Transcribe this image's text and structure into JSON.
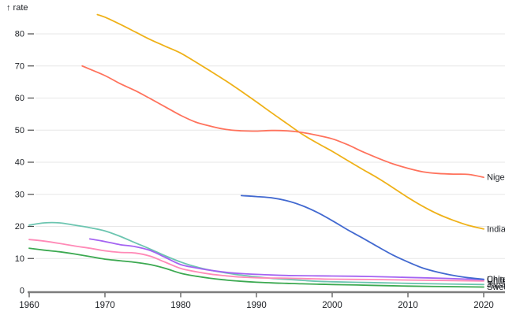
{
  "page": {
    "background": "#ffffff"
  },
  "chart_data": {
    "type": "line",
    "title": "",
    "ylabel_display": "↑ rate",
    "ylabel": "rate",
    "xlabel": "",
    "xlim": [
      1960,
      2021.5
    ],
    "ylim": [
      0,
      88
    ],
    "x_ticks": [
      1960,
      1970,
      1980,
      1990,
      2000,
      2010,
      2020
    ],
    "y_ticks": [
      0,
      10,
      20,
      30,
      40,
      50,
      60,
      70,
      80
    ],
    "grid": "horizontal",
    "legend_position": "line-end-labels-right-edge-clipped",
    "styles": {
      "grid_color": "#e7e7e7",
      "axis_line_color": "#7d7d7d",
      "tick_mark_color": "#4a4a4a",
      "text_color": "#1b1e23",
      "line_width": 1.8
    },
    "series": [
      {
        "name": "Japan",
        "color": "#6cc5b0",
        "points": [
          [
            1960,
            20.4
          ],
          [
            1962,
            21.1
          ],
          [
            1964,
            21.1
          ],
          [
            1966,
            20.4
          ],
          [
            1968,
            19.6
          ],
          [
            1970,
            18.6
          ],
          [
            1972,
            16.9
          ],
          [
            1974,
            14.9
          ],
          [
            1976,
            12.9
          ],
          [
            1978,
            10.8
          ],
          [
            1980,
            8.9
          ],
          [
            1982,
            7.4
          ],
          [
            1984,
            6.3
          ],
          [
            1986,
            5.5
          ],
          [
            1988,
            4.8
          ],
          [
            1990,
            4.3
          ],
          [
            1992,
            3.8
          ],
          [
            1994,
            3.5
          ],
          [
            1996,
            3.2
          ],
          [
            1998,
            2.9
          ],
          [
            2000,
            2.75
          ],
          [
            2005,
            2.5
          ],
          [
            2010,
            2.25
          ],
          [
            2015,
            2.05
          ],
          [
            2020,
            1.9
          ]
        ]
      },
      {
        "name": "Sweden",
        "color": "#3ca951",
        "points": [
          [
            1960,
            13.2
          ],
          [
            1962,
            12.6
          ],
          [
            1964,
            12.1
          ],
          [
            1966,
            11.4
          ],
          [
            1968,
            10.6
          ],
          [
            1970,
            9.8
          ],
          [
            1972,
            9.3
          ],
          [
            1974,
            8.8
          ],
          [
            1976,
            8.1
          ],
          [
            1978,
            6.9
          ],
          [
            1980,
            5.4
          ],
          [
            1982,
            4.5
          ],
          [
            1984,
            3.8
          ],
          [
            1986,
            3.3
          ],
          [
            1988,
            2.9
          ],
          [
            1990,
            2.6
          ],
          [
            1992,
            2.4
          ],
          [
            1994,
            2.25
          ],
          [
            1996,
            2.1
          ],
          [
            1998,
            2.0
          ],
          [
            2000,
            1.9
          ],
          [
            2005,
            1.65
          ],
          [
            2010,
            1.4
          ],
          [
            2015,
            1.25
          ],
          [
            2020,
            1.1
          ]
        ]
      },
      {
        "name": "United Kingdom",
        "color": "#ff8ab7",
        "points": [
          [
            1960,
            15.9
          ],
          [
            1962,
            15.4
          ],
          [
            1964,
            14.7
          ],
          [
            1966,
            13.9
          ],
          [
            1968,
            13.2
          ],
          [
            1970,
            12.4
          ],
          [
            1972,
            11.9
          ],
          [
            1974,
            11.7
          ],
          [
            1976,
            10.7
          ],
          [
            1978,
            8.8
          ],
          [
            1980,
            6.9
          ],
          [
            1982,
            5.9
          ],
          [
            1984,
            5.1
          ],
          [
            1986,
            4.6
          ],
          [
            1988,
            4.2
          ],
          [
            1990,
            4.0
          ],
          [
            1992,
            3.9
          ],
          [
            1994,
            3.85
          ],
          [
            1996,
            3.75
          ],
          [
            1998,
            3.65
          ],
          [
            2000,
            3.55
          ],
          [
            2005,
            3.45
          ],
          [
            2010,
            3.3
          ],
          [
            2015,
            3.15
          ],
          [
            2020,
            3.0
          ]
        ]
      },
      {
        "name": "United States",
        "color": "#a463f2",
        "points": [
          [
            1968,
            16.1
          ],
          [
            1970,
            15.3
          ],
          [
            1972,
            14.3
          ],
          [
            1974,
            13.7
          ],
          [
            1976,
            12.5
          ],
          [
            1978,
            10.3
          ],
          [
            1980,
            8.1
          ],
          [
            1982,
            7.1
          ],
          [
            1984,
            6.3
          ],
          [
            1986,
            5.7
          ],
          [
            1988,
            5.3
          ],
          [
            1990,
            5.05
          ],
          [
            1992,
            4.85
          ],
          [
            1994,
            4.7
          ],
          [
            1996,
            4.65
          ],
          [
            1998,
            4.6
          ],
          [
            2000,
            4.55
          ],
          [
            2005,
            4.4
          ],
          [
            2010,
            4.1
          ],
          [
            2015,
            3.8
          ],
          [
            2020,
            3.4
          ]
        ]
      },
      {
        "name": "China",
        "color": "#4269d0",
        "points": [
          [
            1988,
            29.6
          ],
          [
            1990,
            29.3
          ],
          [
            1992,
            28.9
          ],
          [
            1994,
            28.0
          ],
          [
            1996,
            26.5
          ],
          [
            1998,
            24.4
          ],
          [
            2000,
            21.8
          ],
          [
            2002,
            19.0
          ],
          [
            2004,
            16.4
          ],
          [
            2006,
            13.7
          ],
          [
            2008,
            11.1
          ],
          [
            2010,
            8.9
          ],
          [
            2012,
            7.0
          ],
          [
            2014,
            5.7
          ],
          [
            2016,
            4.7
          ],
          [
            2018,
            4.0
          ],
          [
            2020,
            3.5
          ]
        ]
      },
      {
        "name": "India",
        "color": "#efb118",
        "points": [
          [
            1969,
            86
          ],
          [
            1970,
            85.2
          ],
          [
            1972,
            83.0
          ],
          [
            1974,
            80.6
          ],
          [
            1976,
            78.2
          ],
          [
            1978,
            76.1
          ],
          [
            1980,
            74.0
          ],
          [
            1982,
            71.2
          ],
          [
            1984,
            68.3
          ],
          [
            1986,
            65.3
          ],
          [
            1988,
            62.1
          ],
          [
            1990,
            58.8
          ],
          [
            1992,
            55.4
          ],
          [
            1994,
            52.1
          ],
          [
            1996,
            48.8
          ],
          [
            1998,
            46.0
          ],
          [
            2000,
            43.4
          ],
          [
            2002,
            40.6
          ],
          [
            2004,
            37.8
          ],
          [
            2006,
            35.1
          ],
          [
            2008,
            32.1
          ],
          [
            2010,
            29.0
          ],
          [
            2012,
            26.2
          ],
          [
            2014,
            23.8
          ],
          [
            2016,
            21.9
          ],
          [
            2018,
            20.3
          ],
          [
            2020,
            19.2
          ]
        ]
      },
      {
        "name": "Nigeria",
        "color": "#ff725c",
        "points": [
          [
            1967,
            70
          ],
          [
            1968,
            69
          ],
          [
            1970,
            67
          ],
          [
            1972,
            64.5
          ],
          [
            1974,
            62.3
          ],
          [
            1976,
            59.8
          ],
          [
            1978,
            57.2
          ],
          [
            1980,
            54.6
          ],
          [
            1982,
            52.5
          ],
          [
            1984,
            51.2
          ],
          [
            1986,
            50.2
          ],
          [
            1988,
            49.8
          ],
          [
            1990,
            49.7
          ],
          [
            1992,
            49.9
          ],
          [
            1994,
            49.8
          ],
          [
            1996,
            49.3
          ],
          [
            1998,
            48.4
          ],
          [
            2000,
            47.3
          ],
          [
            2002,
            45.5
          ],
          [
            2004,
            43.3
          ],
          [
            2006,
            41.3
          ],
          [
            2008,
            39.5
          ],
          [
            2010,
            38.1
          ],
          [
            2012,
            37.0
          ],
          [
            2014,
            36.5
          ],
          [
            2016,
            36.3
          ],
          [
            2018,
            36.2
          ],
          [
            2020,
            35.3
          ]
        ]
      }
    ]
  }
}
